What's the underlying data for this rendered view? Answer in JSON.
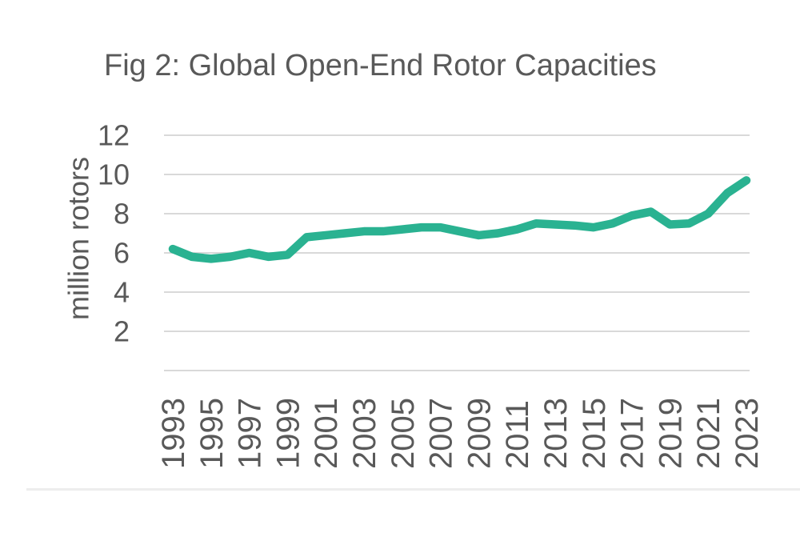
{
  "chart_data": {
    "type": "line",
    "title": "Fig 2: Global Open-End Rotor Capacities",
    "ylabel": "million rotors",
    "x": [
      1993,
      1994,
      1995,
      1996,
      1997,
      1998,
      1999,
      2000,
      2001,
      2002,
      2003,
      2004,
      2005,
      2006,
      2007,
      2008,
      2009,
      2010,
      2011,
      2012,
      2013,
      2014,
      2015,
      2016,
      2017,
      2018,
      2019,
      2020,
      2021,
      2022,
      2023
    ],
    "values": [
      6.2,
      5.8,
      5.7,
      5.8,
      6.0,
      5.8,
      5.9,
      6.8,
      6.9,
      7.0,
      7.1,
      7.1,
      7.2,
      7.3,
      7.3,
      7.1,
      6.9,
      7.0,
      7.2,
      7.5,
      7.45,
      7.4,
      7.3,
      7.5,
      7.9,
      8.1,
      7.45,
      7.5,
      8.0,
      9.05,
      9.7
    ],
    "xticks": [
      1993,
      1995,
      1997,
      1999,
      2001,
      2003,
      2005,
      2007,
      2009,
      2011,
      2013,
      2015,
      2017,
      2019,
      2021,
      2023
    ],
    "yticks": [
      2,
      4,
      6,
      8,
      10,
      12
    ],
    "ylim": [
      0,
      12
    ],
    "grid": true,
    "legend_position": "none",
    "colors": {
      "line": "#2ab291",
      "grid": "#d9d9d9",
      "text": "#595959",
      "divider": "#ededed",
      "background": "#ffffff"
    }
  }
}
